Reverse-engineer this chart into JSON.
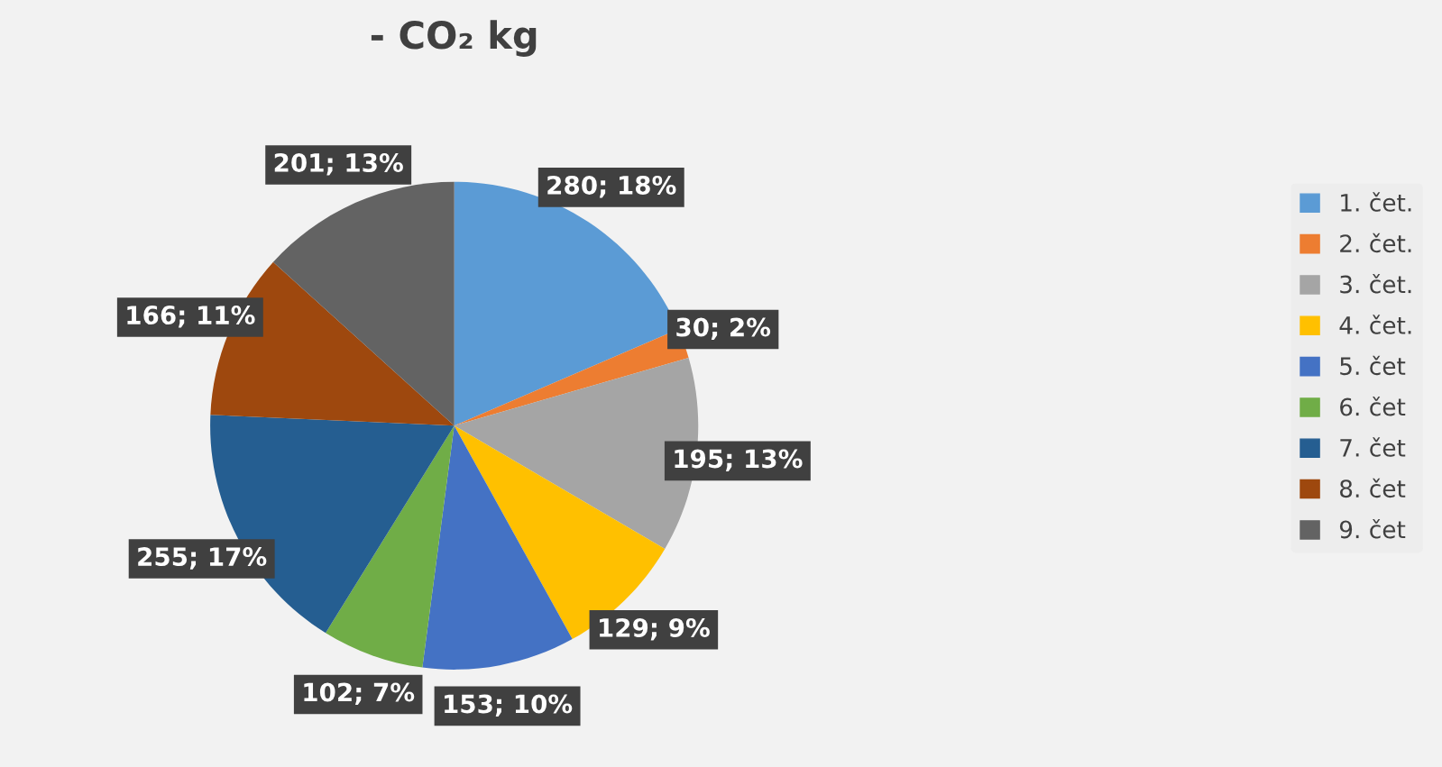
{
  "chart_data": {
    "type": "pie",
    "title": "- CO₂ kg",
    "categories": [
      "1. čet.",
      "2. čet.",
      "3. čet.",
      "4. čet.",
      "5. čet",
      "6. čet",
      "7. čet",
      "8. čet",
      "9. čet"
    ],
    "values": [
      280,
      30,
      195,
      129,
      153,
      102,
      255,
      166,
      201
    ],
    "colors": [
      "#5b9bd5",
      "#ed7d31",
      "#a5a5a5",
      "#ffc000",
      "#4472c4",
      "#70ad47",
      "#255e91",
      "#9e480e",
      "#636363"
    ],
    "value_labels": [
      "280; 18%",
      "30; 2%",
      "195; 13%",
      "129; 9%",
      "153; 10%",
      "102; 7%",
      "255; 17%",
      "166; 11%",
      "201; 13%"
    ],
    "legend": "right"
  }
}
